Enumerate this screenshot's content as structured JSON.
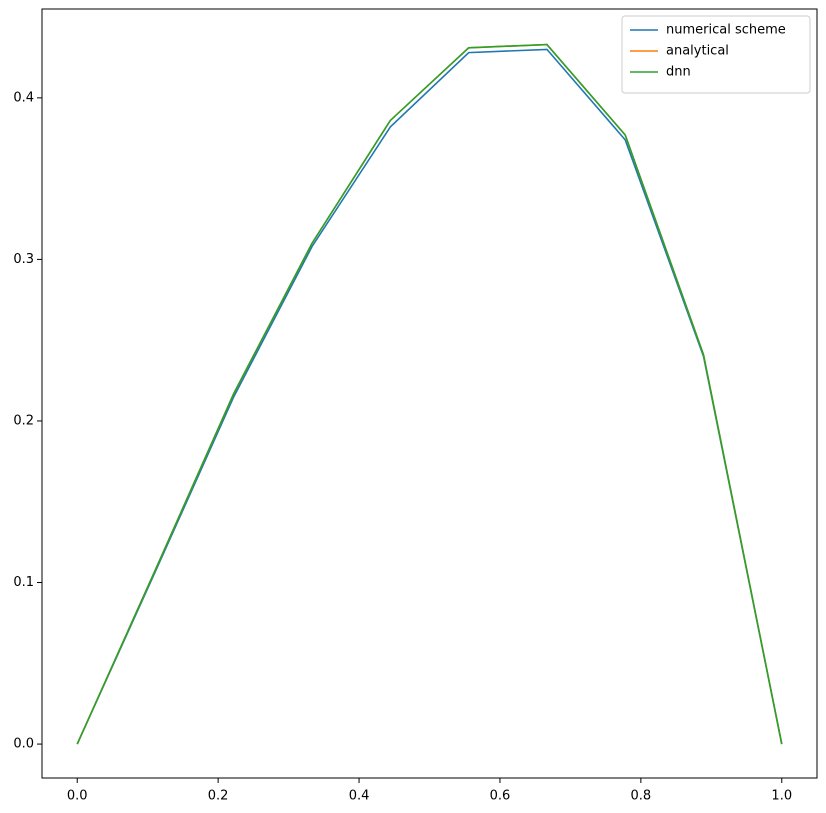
{
  "chart_data": {
    "type": "line",
    "x": [
      0,
      0.1111,
      0.2222,
      0.3333,
      0.4444,
      0.5556,
      0.6667,
      0.7778,
      0.8889,
      1
    ],
    "series": [
      {
        "name": "numerical scheme",
        "color": "#1f77b4",
        "values": [
          0,
          0.107,
          0.215,
          0.308,
          0.382,
          0.428,
          0.43,
          0.374,
          0.24,
          0
        ]
      },
      {
        "name": "analytical",
        "color": "#ff7f0e",
        "values": [
          0,
          0.108,
          0.217,
          0.31,
          0.386,
          0.431,
          0.433,
          0.377,
          0.241,
          0
        ]
      },
      {
        "name": "dnn",
        "color": "#2ca02c",
        "values": [
          0,
          0.108,
          0.217,
          0.31,
          0.386,
          0.431,
          0.433,
          0.377,
          0.241,
          0
        ]
      }
    ],
    "xlim": [
      -0.05,
      1.05
    ],
    "xticks": [
      {
        "value": 0,
        "label": "0.0"
      },
      0.2,
      0.4,
      0.6,
      0.8,
      {
        "value": 1,
        "label": "1.0"
      }
    ],
    "ylim": [
      -0.021,
      0.455
    ],
    "yticks": [
      {
        "value": 0,
        "label": "0.0"
      },
      0.1,
      0.2,
      0.3,
      0.4
    ],
    "legend": "upper right"
  }
}
